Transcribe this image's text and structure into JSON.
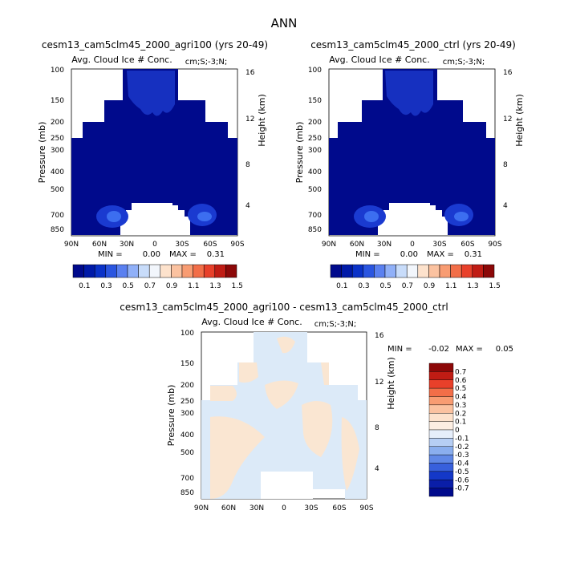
{
  "page_title": "ANN",
  "colors": {
    "bg_navy": "#000a8c",
    "ice_mid": "#0a28c8",
    "ice_bright": "#2d50e6",
    "ice_light": "#3c6ef0",
    "diff_neg": "#dceaf8",
    "diff_pos": "#fae6d2"
  },
  "chart_data": [
    {
      "type": "heatmap",
      "title": "cesm13_cam5clm45_2000_agri100 (yrs 20-49)",
      "subtitle": "Avg. Cloud Ice # Conc.",
      "units_label": "cm;S;-3;N;",
      "ylabel": "Pressure (mb)",
      "ylabel_right": "Height (km)",
      "x_ticks": [
        "90N",
        "60N",
        "30N",
        "0",
        "30S",
        "60S",
        "90S"
      ],
      "y_ticks": [
        "100",
        "150",
        "200",
        "250",
        "300",
        "400",
        "500",
        "700",
        "850"
      ],
      "y_ticks_right": [
        "16",
        "12",
        "8",
        "4"
      ],
      "stats": {
        "min_label": "MIN =",
        "min": "0.00",
        "max_label": "MAX =",
        "max": "0.31"
      },
      "colorbar": [
        "0.1",
        "0.3",
        "0.5",
        "0.7",
        "0.9",
        "1.1",
        "1.3",
        "1.5"
      ]
    },
    {
      "type": "heatmap",
      "title": "cesm13_cam5clm45_2000_ctrl (yrs 20-49)",
      "subtitle": "Avg. Cloud Ice # Conc.",
      "units_label": "cm;S;-3;N;",
      "ylabel": "Pressure (mb)",
      "ylabel_right": "Height (km)",
      "x_ticks": [
        "90N",
        "60N",
        "30N",
        "0",
        "30S",
        "60S",
        "90S"
      ],
      "y_ticks": [
        "100",
        "150",
        "200",
        "250",
        "300",
        "400",
        "500",
        "700",
        "850"
      ],
      "y_ticks_right": [
        "16",
        "12",
        "8",
        "4"
      ],
      "stats": {
        "min_label": "MIN =",
        "min": "0.00",
        "max_label": "MAX =",
        "max": "0.31"
      },
      "colorbar": [
        "0.1",
        "0.3",
        "0.5",
        "0.7",
        "0.9",
        "1.1",
        "1.3",
        "1.5"
      ]
    },
    {
      "type": "heatmap",
      "title": "cesm13_cam5clm45_2000_agri100 - cesm13_cam5clm45_2000_ctrl",
      "subtitle": "Avg. Cloud Ice # Conc.",
      "units_label": "cm;S;-3;N;",
      "ylabel": "Pressure (mb)",
      "ylabel_right": "Height (km)",
      "x_ticks": [
        "90N",
        "60N",
        "30N",
        "0",
        "30S",
        "60S",
        "90S"
      ],
      "y_ticks": [
        "100",
        "150",
        "200",
        "250",
        "300",
        "400",
        "500",
        "700",
        "850"
      ],
      "y_ticks_right": [
        "16",
        "12",
        "8",
        "4"
      ],
      "stats": {
        "min_label": "MIN =",
        "min": "-0.02",
        "max_label": "MAX =",
        "max": "0.05"
      },
      "colorbar": [
        "0.7",
        "0.6",
        "0.5",
        "0.4",
        "0.3",
        "0.2",
        "0.1",
        "0",
        "-0.1",
        "-0.2",
        "-0.3",
        "-0.4",
        "-0.5",
        "-0.6",
        "-0.7"
      ]
    }
  ]
}
